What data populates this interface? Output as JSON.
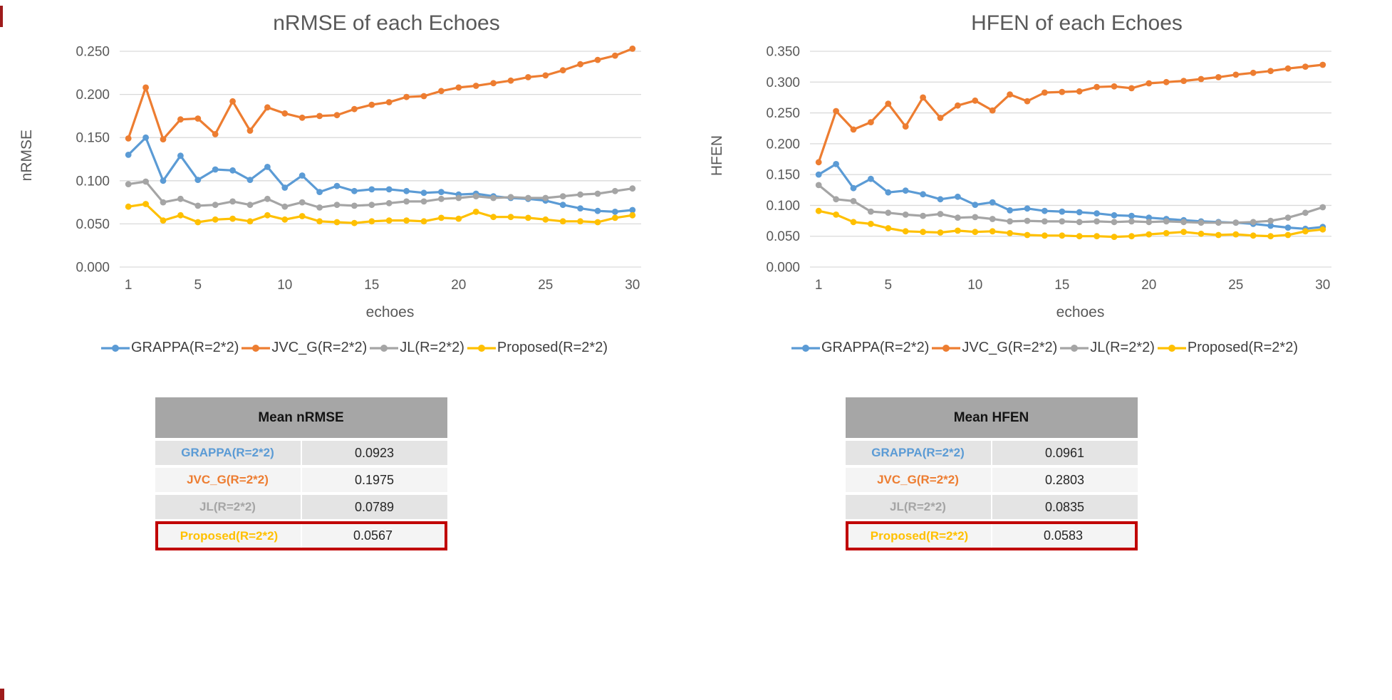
{
  "colors": {
    "grappa": "#5B9BD5",
    "jvc_g": "#ED7D31",
    "jl": "#A5A5A5",
    "proposed": "#FFC000",
    "grid": "#D9D9D9",
    "axis_text": "#595959",
    "legend_text": "#404040",
    "table_header_bg": "#A6A6A6",
    "row_alt_a": "#E4E4E4",
    "row_alt_b": "#F4F4F4",
    "highlight_border": "#C00000"
  },
  "chart_data": [
    {
      "type": "line",
      "title": "nRMSE of each Echoes",
      "xlabel": "echoes",
      "ylabel": "nRMSE",
      "x": [
        1,
        2,
        3,
        4,
        5,
        6,
        7,
        8,
        9,
        10,
        11,
        12,
        13,
        14,
        15,
        16,
        17,
        18,
        19,
        20,
        21,
        22,
        23,
        24,
        25,
        26,
        27,
        28,
        29,
        30
      ],
      "xticks": [
        1,
        5,
        10,
        15,
        20,
        25,
        30
      ],
      "ylim": [
        0,
        0.25
      ],
      "ytick_step": 0.05,
      "grid": true,
      "legend_position": "bottom",
      "series": [
        {
          "name": "GRAPPA(R=2*2)",
          "color": "#5B9BD5",
          "values": [
            0.13,
            0.15,
            0.1,
            0.129,
            0.101,
            0.113,
            0.112,
            0.101,
            0.116,
            0.092,
            0.106,
            0.087,
            0.094,
            0.088,
            0.09,
            0.09,
            0.088,
            0.086,
            0.087,
            0.084,
            0.085,
            0.082,
            0.08,
            0.079,
            0.077,
            0.072,
            0.068,
            0.065,
            0.064,
            0.066
          ]
        },
        {
          "name": "JVC_G(R=2*2)",
          "color": "#ED7D31",
          "values": [
            0.149,
            0.208,
            0.148,
            0.171,
            0.172,
            0.154,
            0.192,
            0.158,
            0.185,
            0.178,
            0.173,
            0.175,
            0.176,
            0.183,
            0.188,
            0.191,
            0.197,
            0.198,
            0.204,
            0.208,
            0.21,
            0.213,
            0.216,
            0.22,
            0.222,
            0.228,
            0.235,
            0.24,
            0.245,
            0.253
          ]
        },
        {
          "name": "JL(R=2*2)",
          "color": "#A5A5A5",
          "values": [
            0.096,
            0.099,
            0.075,
            0.079,
            0.071,
            0.072,
            0.076,
            0.072,
            0.079,
            0.07,
            0.075,
            0.069,
            0.072,
            0.071,
            0.072,
            0.074,
            0.076,
            0.076,
            0.079,
            0.08,
            0.082,
            0.08,
            0.081,
            0.08,
            0.08,
            0.082,
            0.084,
            0.085,
            0.088,
            0.091
          ]
        },
        {
          "name": "Proposed(R=2*2)",
          "color": "#FFC000",
          "values": [
            0.07,
            0.073,
            0.054,
            0.06,
            0.052,
            0.055,
            0.056,
            0.053,
            0.06,
            0.055,
            0.059,
            0.053,
            0.052,
            0.051,
            0.053,
            0.054,
            0.054,
            0.053,
            0.057,
            0.056,
            0.064,
            0.058,
            0.058,
            0.057,
            0.055,
            0.053,
            0.053,
            0.052,
            0.057,
            0.06
          ]
        }
      ]
    },
    {
      "type": "line",
      "title": "HFEN of each Echoes",
      "xlabel": "echoes",
      "ylabel": "HFEN",
      "x": [
        1,
        2,
        3,
        4,
        5,
        6,
        7,
        8,
        9,
        10,
        11,
        12,
        13,
        14,
        15,
        16,
        17,
        18,
        19,
        20,
        21,
        22,
        23,
        24,
        25,
        26,
        27,
        28,
        29,
        30
      ],
      "xticks": [
        1,
        5,
        10,
        15,
        20,
        25,
        30
      ],
      "ylim": [
        0,
        0.35
      ],
      "ytick_step": 0.05,
      "grid": true,
      "legend_position": "bottom",
      "series": [
        {
          "name": "GRAPPA(R=2*2)",
          "color": "#5B9BD5",
          "values": [
            0.15,
            0.167,
            0.128,
            0.143,
            0.121,
            0.124,
            0.118,
            0.11,
            0.114,
            0.101,
            0.105,
            0.092,
            0.095,
            0.091,
            0.09,
            0.089,
            0.087,
            0.084,
            0.083,
            0.08,
            0.078,
            0.076,
            0.074,
            0.073,
            0.072,
            0.07,
            0.067,
            0.064,
            0.062,
            0.065
          ]
        },
        {
          "name": "JVC_G(R=2*2)",
          "color": "#ED7D31",
          "values": [
            0.17,
            0.253,
            0.223,
            0.235,
            0.265,
            0.228,
            0.275,
            0.242,
            0.262,
            0.27,
            0.254,
            0.28,
            0.269,
            0.283,
            0.284,
            0.285,
            0.292,
            0.293,
            0.29,
            0.298,
            0.3,
            0.302,
            0.305,
            0.308,
            0.312,
            0.315,
            0.318,
            0.322,
            0.325,
            0.328
          ]
        },
        {
          "name": "JL(R=2*2)",
          "color": "#A5A5A5",
          "values": [
            0.133,
            0.11,
            0.107,
            0.09,
            0.088,
            0.085,
            0.083,
            0.086,
            0.08,
            0.081,
            0.078,
            0.074,
            0.075,
            0.074,
            0.074,
            0.073,
            0.074,
            0.073,
            0.074,
            0.073,
            0.074,
            0.073,
            0.072,
            0.072,
            0.072,
            0.073,
            0.075,
            0.08,
            0.088,
            0.097
          ]
        },
        {
          "name": "Proposed(R=2*2)",
          "color": "#FFC000",
          "values": [
            0.091,
            0.085,
            0.073,
            0.07,
            0.063,
            0.058,
            0.057,
            0.056,
            0.059,
            0.057,
            0.058,
            0.055,
            0.052,
            0.051,
            0.051,
            0.05,
            0.05,
            0.049,
            0.05,
            0.053,
            0.055,
            0.057,
            0.054,
            0.052,
            0.053,
            0.051,
            0.05,
            0.052,
            0.058,
            0.061
          ]
        }
      ]
    }
  ],
  "tables": [
    {
      "title": "Mean nRMSE",
      "rows": [
        {
          "label": "GRAPPA(R=2*2)",
          "value": "0.0923",
          "color": "#5B9BD5",
          "highlight": false
        },
        {
          "label": "JVC_G(R=2*2)",
          "value": "0.1975",
          "color": "#ED7D31",
          "highlight": false
        },
        {
          "label": "JL(R=2*2)",
          "value": "0.0789",
          "color": "#A5A5A5",
          "highlight": false
        },
        {
          "label": "Proposed(R=2*2)",
          "value": "0.0567",
          "color": "#FFC000",
          "highlight": true
        }
      ]
    },
    {
      "title": "Mean HFEN",
      "rows": [
        {
          "label": "GRAPPA(R=2*2)",
          "value": "0.0961",
          "color": "#5B9BD5",
          "highlight": false
        },
        {
          "label": "JVC_G(R=2*2)",
          "value": "0.2803",
          "color": "#ED7D31",
          "highlight": false
        },
        {
          "label": "JL(R=2*2)",
          "value": "0.0835",
          "color": "#A5A5A5",
          "highlight": false
        },
        {
          "label": "Proposed(R=2*2)",
          "value": "0.0583",
          "color": "#FFC000",
          "highlight": true
        }
      ]
    }
  ]
}
